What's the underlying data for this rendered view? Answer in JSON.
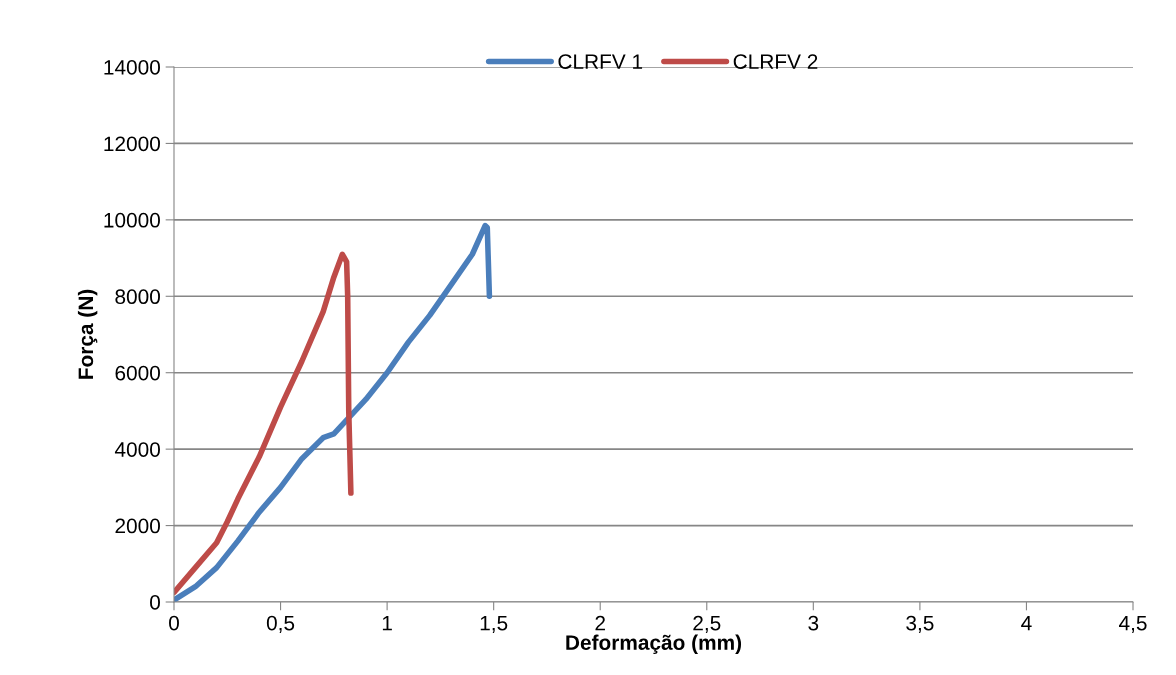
{
  "chart_data": {
    "type": "line",
    "xlabel": "Deformação (mm)",
    "ylabel": "Força (N)",
    "xlim": [
      0,
      4.5
    ],
    "xticks": [
      {
        "value": 0,
        "label": "0"
      },
      {
        "value": 0.5,
        "label": "0,5"
      },
      {
        "value": 1,
        "label": "1"
      },
      {
        "value": 1.5,
        "label": "1,5"
      },
      {
        "value": 2,
        "label": "2"
      },
      {
        "value": 2.5,
        "label": "2,5"
      },
      {
        "value": 3,
        "label": "3"
      },
      {
        "value": 3.5,
        "label": "3,5"
      },
      {
        "value": 4,
        "label": "4"
      },
      {
        "value": 4.5,
        "label": "4,5"
      }
    ],
    "ylim": [
      0,
      14000
    ],
    "yticks": [
      0,
      2000,
      4000,
      6000,
      8000,
      10000,
      12000,
      14000
    ],
    "grid": "y",
    "legend": "top",
    "marker": "none",
    "line_style": "solid",
    "series": [
      {
        "name": "CLRFV 1",
        "color": "#4a7ebb",
        "x": [
          0,
          0.1,
          0.2,
          0.3,
          0.4,
          0.5,
          0.6,
          0.7,
          0.75,
          0.8,
          0.9,
          1.0,
          1.1,
          1.2,
          1.3,
          1.4,
          1.46,
          1.47,
          1.48
        ],
        "values": [
          50,
          400,
          900,
          1600,
          2350,
          3000,
          3750,
          4300,
          4400,
          4700,
          5300,
          6000,
          6800,
          7500,
          8300,
          9100,
          9850,
          9800,
          8000
        ]
      },
      {
        "name": "CLRFV 2",
        "color": "#be4b48",
        "x": [
          0,
          0.1,
          0.2,
          0.25,
          0.3,
          0.4,
          0.5,
          0.6,
          0.7,
          0.75,
          0.79,
          0.81,
          0.815,
          0.82,
          0.83
        ],
        "values": [
          250,
          900,
          1550,
          2100,
          2700,
          3800,
          5100,
          6300,
          7600,
          8500,
          9100,
          8900,
          8000,
          5000,
          2850
        ]
      }
    ]
  }
}
